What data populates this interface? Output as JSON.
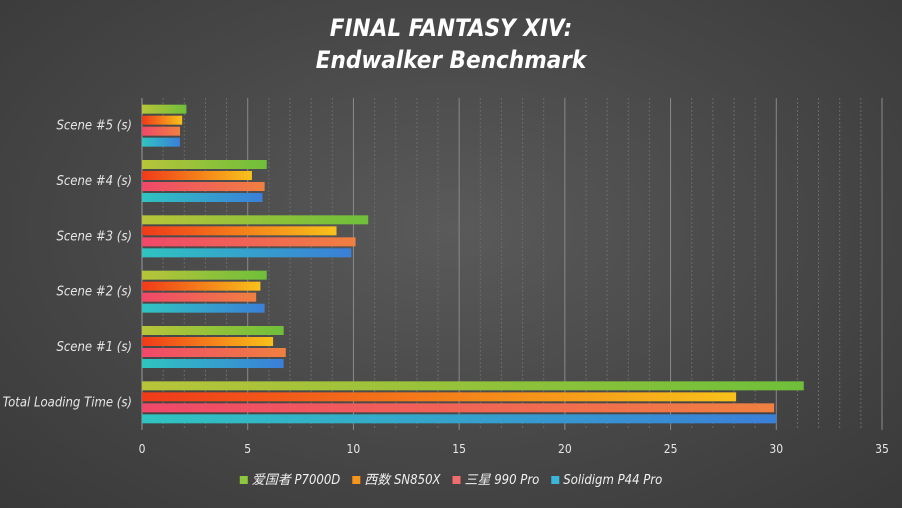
{
  "chart_data": {
    "type": "bar",
    "orientation": "horizontal",
    "title": "FINAL FANTASY XIV:",
    "subtitle": "Endwalker Benchmark",
    "categories": [
      "Scene #5 (s)",
      "Scene #4 (s)",
      "Scene #3 (s)",
      "Scene #2 (s)",
      "Scene #1 (s)",
      "Total Loading Time (s)"
    ],
    "series": [
      {
        "name": "爱国者 P7000D",
        "color": "#8dc63f",
        "values": [
          2.1,
          5.9,
          10.7,
          5.9,
          6.7,
          31.3
        ]
      },
      {
        "name": "西数 SN850X",
        "color": "#f7941d",
        "values": [
          1.9,
          5.2,
          9.2,
          5.6,
          6.2,
          28.1
        ]
      },
      {
        "name": "三星 990 Pro",
        "color": "#f26d6d",
        "values": [
          1.8,
          5.8,
          10.1,
          5.4,
          6.8,
          29.9
        ]
      },
      {
        "name": "Solidigm P44 Pro",
        "color": "#3bb6d8",
        "values": [
          1.8,
          5.7,
          9.9,
          5.8,
          6.7,
          30.0
        ]
      }
    ],
    "xlim": [
      0,
      35
    ],
    "x_ticks": [
      0,
      5,
      10,
      15,
      20,
      25,
      30,
      35
    ],
    "grid": true,
    "legend_position": "bottom"
  }
}
